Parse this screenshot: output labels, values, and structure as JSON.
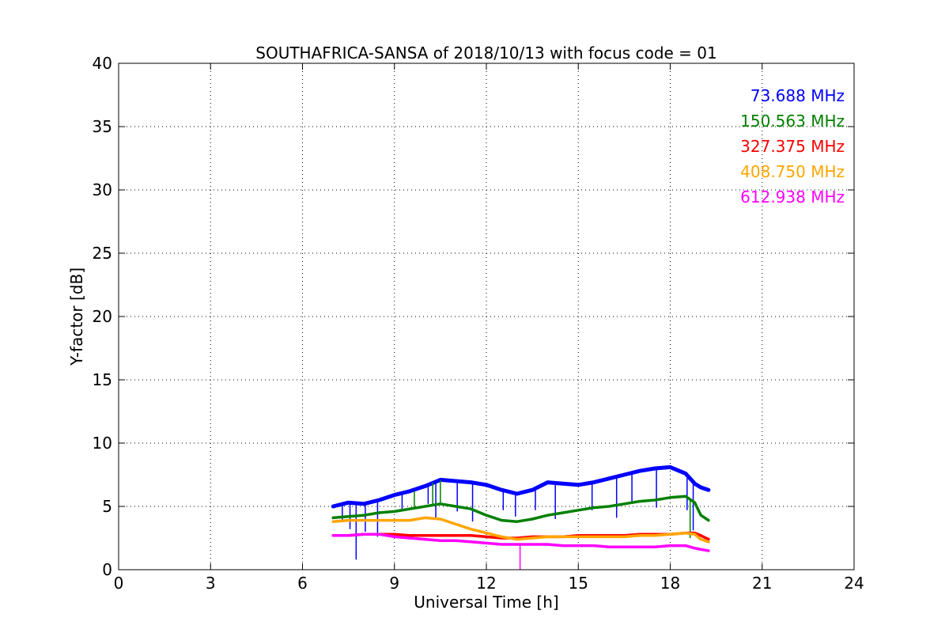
{
  "chart_data": {
    "type": "line",
    "title": "SOUTHAFRICA-SANSA of 2018/10/13 with focus code = 01",
    "xlabel": "Universal Time [h]",
    "ylabel": "Y-factor [dB]",
    "xlim": [
      0,
      24
    ],
    "ylim": [
      0,
      40
    ],
    "xticks": [
      0,
      3,
      6,
      9,
      12,
      15,
      18,
      21,
      24
    ],
    "yticks": [
      0,
      5,
      10,
      15,
      20,
      25,
      30,
      35,
      40
    ],
    "x_tick_labels": [
      "0",
      "3",
      "6",
      "9",
      "12",
      "15",
      "18",
      "21",
      "24"
    ],
    "y_tick_labels": [
      "0",
      "5",
      "10",
      "15",
      "20",
      "25",
      "30",
      "35",
      "40"
    ],
    "grid": true,
    "legend_position": "top-right",
    "series": [
      {
        "name": "73.688 MHz",
        "color": "#0000ff",
        "x": [
          7.0,
          7.5,
          8.0,
          8.5,
          9.0,
          9.5,
          10.0,
          10.5,
          11.0,
          11.5,
          12.0,
          12.5,
          13.0,
          13.5,
          14.0,
          14.5,
          15.0,
          15.5,
          16.0,
          16.5,
          17.0,
          17.5,
          18.0,
          18.5,
          18.8,
          19.0,
          19.25
        ],
        "y": [
          5.0,
          5.3,
          5.2,
          5.5,
          5.9,
          6.2,
          6.6,
          7.1,
          7.0,
          6.9,
          6.7,
          6.3,
          6.0,
          6.3,
          6.9,
          6.8,
          6.7,
          6.9,
          7.2,
          7.5,
          7.8,
          8.0,
          8.1,
          7.6,
          6.8,
          6.5,
          6.3
        ]
      },
      {
        "name": "150.563 MHz",
        "color": "#008000",
        "x": [
          7.0,
          7.5,
          8.0,
          8.5,
          9.0,
          9.5,
          10.0,
          10.5,
          11.0,
          11.5,
          12.0,
          12.5,
          13.0,
          13.5,
          14.0,
          14.5,
          15.0,
          15.5,
          16.0,
          16.5,
          17.0,
          17.5,
          18.0,
          18.5,
          18.8,
          19.0,
          19.25
        ],
        "y": [
          4.1,
          4.2,
          4.3,
          4.5,
          4.6,
          4.8,
          5.0,
          5.2,
          5.0,
          4.8,
          4.3,
          3.9,
          3.8,
          4.0,
          4.3,
          4.5,
          4.7,
          4.9,
          5.0,
          5.2,
          5.4,
          5.5,
          5.7,
          5.8,
          5.3,
          4.3,
          3.9
        ]
      },
      {
        "name": "327.375 MHz",
        "color": "#ff0000",
        "x": [
          7.0,
          7.5,
          8.0,
          8.5,
          9.0,
          9.5,
          10.0,
          10.5,
          11.0,
          11.5,
          12.0,
          12.5,
          13.0,
          13.5,
          14.0,
          14.5,
          15.0,
          15.5,
          16.0,
          16.5,
          17.0,
          17.5,
          18.0,
          18.5,
          18.8,
          19.0,
          19.25
        ],
        "y": [
          2.7,
          2.7,
          2.8,
          2.8,
          2.8,
          2.7,
          2.7,
          2.7,
          2.7,
          2.7,
          2.6,
          2.5,
          2.5,
          2.6,
          2.6,
          2.6,
          2.7,
          2.7,
          2.7,
          2.7,
          2.8,
          2.8,
          2.8,
          2.9,
          2.9,
          2.7,
          2.4
        ]
      },
      {
        "name": "408.750 MHz",
        "color": "#ffa500",
        "x": [
          7.0,
          7.5,
          8.0,
          8.5,
          9.0,
          9.5,
          10.0,
          10.5,
          11.0,
          11.5,
          12.0,
          12.5,
          13.0,
          13.5,
          14.0,
          14.5,
          15.0,
          15.5,
          16.0,
          16.5,
          17.0,
          17.5,
          18.0,
          18.5,
          18.8,
          19.0,
          19.25
        ],
        "y": [
          3.8,
          3.9,
          3.9,
          3.9,
          3.9,
          3.9,
          4.1,
          4.0,
          3.6,
          3.2,
          2.9,
          2.6,
          2.4,
          2.5,
          2.6,
          2.6,
          2.6,
          2.6,
          2.6,
          2.6,
          2.7,
          2.7,
          2.8,
          2.9,
          2.8,
          2.4,
          2.2
        ]
      },
      {
        "name": "612.938 MHz",
        "color": "#ff00ff",
        "x": [
          7.0,
          7.5,
          8.0,
          8.5,
          9.0,
          9.5,
          10.0,
          10.5,
          11.0,
          11.5,
          12.0,
          12.5,
          13.0,
          13.5,
          14.0,
          14.5,
          15.0,
          15.5,
          16.0,
          16.5,
          17.0,
          17.5,
          18.0,
          18.5,
          18.8,
          19.0,
          19.25
        ],
        "y": [
          2.7,
          2.7,
          2.8,
          2.8,
          2.6,
          2.5,
          2.4,
          2.3,
          2.3,
          2.2,
          2.1,
          2.0,
          2.0,
          2.0,
          2.0,
          1.9,
          1.9,
          1.9,
          1.8,
          1.8,
          1.8,
          1.8,
          1.9,
          1.9,
          1.7,
          1.6,
          1.5
        ]
      }
    ],
    "spikes": [
      {
        "series": 0,
        "x": [
          7.3,
          7.55,
          7.75,
          8.05,
          8.45,
          9.25,
          10.1,
          10.35,
          11.05,
          11.55,
          12.55,
          12.95,
          13.6,
          14.25,
          15.45,
          16.25,
          16.75,
          17.55,
          18.55,
          18.75
        ],
        "y": [
          3.9,
          3.2,
          0.8,
          3.0,
          2.6,
          4.8,
          5.2,
          4.0,
          4.6,
          3.8,
          4.7,
          4.2,
          4.7,
          4.0,
          4.7,
          4.1,
          5.2,
          4.9,
          4.7,
          3.1
        ]
      },
      {
        "series": 1,
        "x": [
          9.65,
          10.25,
          10.5,
          18.65
        ],
        "y": [
          6.2,
          6.9,
          7.1,
          2.5
        ]
      },
      {
        "series": 4,
        "x": [
          13.1
        ],
        "y": [
          0.0
        ]
      }
    ]
  }
}
